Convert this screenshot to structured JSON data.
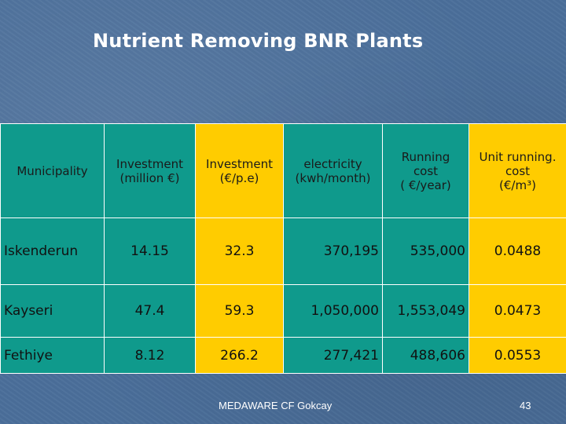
{
  "slide": {
    "title": "Nutrient Removing BNR  Plants",
    "footer": "MEDAWARE   CF Gokcay",
    "page_number": "43"
  },
  "table": {
    "headers": [
      {
        "lines": [
          "Municipality"
        ]
      },
      {
        "lines": [
          "Investment",
          "(million €)"
        ]
      },
      {
        "lines": [
          "Investment",
          "(€/p.e)"
        ]
      },
      {
        "lines": [
          "electricity",
          "(kwh/month)"
        ]
      },
      {
        "lines": [
          "Running",
          "cost",
          "( €/year)"
        ]
      },
      {
        "lines": [
          "Unit running.",
          "cost",
          "(€/m³)"
        ]
      }
    ],
    "rows": [
      {
        "municipality": "Iskenderun",
        "investment_million": "14.15",
        "investment_pe": "32.3",
        "electricity": "370,195",
        "running_cost": "535,000",
        "unit_cost": "0.0488"
      },
      {
        "municipality": "Kayseri",
        "investment_million": "47.4",
        "investment_pe": "59.3",
        "electricity": "1,050,000",
        "running_cost": "1,553,049",
        "unit_cost": "0.0473"
      },
      {
        "municipality": "Fethiye",
        "investment_million": "8.12",
        "investment_pe": "266.2",
        "electricity": "277,421",
        "running_cost": "488,606",
        "unit_cost": "0.0553"
      }
    ]
  },
  "colors": {
    "background": "#4a6e9a",
    "teal": "#0f9a8c",
    "gold": "#ffcc00"
  }
}
